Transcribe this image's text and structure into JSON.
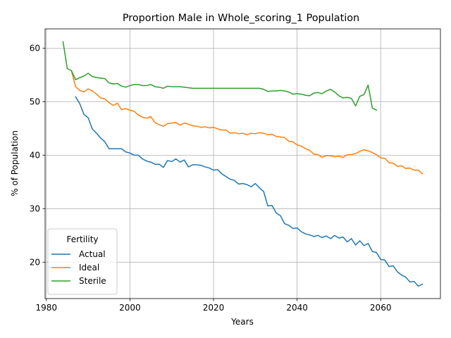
{
  "chart_data": {
    "type": "line",
    "title": "Proportion Male in Whole_scoring_1 Population",
    "xlabel": "Years",
    "ylabel": "% of Population",
    "xlim": [
      1979.7,
      2074.3
    ],
    "ylim": [
      13.2,
      63.6
    ],
    "xticks": [
      1980,
      2000,
      2020,
      2040,
      2060
    ],
    "yticks": [
      20,
      30,
      40,
      50,
      60
    ],
    "grid": true,
    "legend": {
      "title": "Fertility",
      "placement": "lower-left"
    },
    "series": [
      {
        "name": "Actual",
        "color": "#1f77b4",
        "points": [
          [
            1987,
            50.9
          ],
          [
            1988,
            49.6
          ],
          [
            1989,
            47.6
          ],
          [
            1990,
            47.0
          ],
          [
            1991,
            44.9
          ],
          [
            1992,
            44.1
          ],
          [
            1993,
            43.2
          ],
          [
            1994,
            42.5
          ],
          [
            1995,
            41.2
          ],
          [
            1996,
            41.2
          ],
          [
            1997,
            41.2
          ],
          [
            1998,
            41.2
          ],
          [
            1999,
            40.6
          ],
          [
            2000,
            40.4
          ],
          [
            2001,
            40.0
          ],
          [
            2002,
            40.0
          ],
          [
            2003,
            39.3
          ],
          [
            2004,
            38.9
          ],
          [
            2005,
            38.7
          ],
          [
            2006,
            38.3
          ],
          [
            2007,
            38.3
          ],
          [
            2008,
            37.7
          ],
          [
            2009,
            39.0
          ],
          [
            2010,
            38.8
          ],
          [
            2011,
            39.3
          ],
          [
            2012,
            38.7
          ],
          [
            2013,
            39.1
          ],
          [
            2014,
            37.8
          ],
          [
            2015,
            38.2
          ],
          [
            2016,
            38.2
          ],
          [
            2017,
            38.1
          ],
          [
            2018,
            37.8
          ],
          [
            2019,
            37.6
          ],
          [
            2020,
            37.2
          ],
          [
            2021,
            37.3
          ],
          [
            2022,
            36.5
          ],
          [
            2023,
            36.0
          ],
          [
            2024,
            35.5
          ],
          [
            2025,
            35.3
          ],
          [
            2026,
            34.6
          ],
          [
            2027,
            34.7
          ],
          [
            2028,
            34.5
          ],
          [
            2029,
            34.1
          ],
          [
            2030,
            34.7
          ],
          [
            2031,
            33.9
          ],
          [
            2032,
            33.2
          ],
          [
            2033,
            30.5
          ],
          [
            2034,
            30.6
          ],
          [
            2035,
            29.2
          ],
          [
            2036,
            28.7
          ],
          [
            2037,
            27.2
          ],
          [
            2038,
            26.9
          ],
          [
            2039,
            26.3
          ],
          [
            2040,
            26.4
          ],
          [
            2041,
            25.7
          ],
          [
            2042,
            25.3
          ],
          [
            2043,
            25.1
          ],
          [
            2044,
            24.8
          ],
          [
            2045,
            25.0
          ],
          [
            2046,
            24.6
          ],
          [
            2047,
            24.9
          ],
          [
            2048,
            24.4
          ],
          [
            2049,
            25.0
          ],
          [
            2050,
            24.5
          ],
          [
            2051,
            24.7
          ],
          [
            2052,
            23.8
          ],
          [
            2053,
            24.4
          ],
          [
            2054,
            23.2
          ],
          [
            2055,
            24.0
          ],
          [
            2056,
            23.1
          ],
          [
            2057,
            23.5
          ],
          [
            2058,
            22.0
          ],
          [
            2059,
            21.8
          ],
          [
            2060,
            20.5
          ],
          [
            2061,
            20.4
          ],
          [
            2062,
            19.2
          ],
          [
            2063,
            19.3
          ],
          [
            2064,
            18.2
          ],
          [
            2065,
            17.6
          ],
          [
            2066,
            17.2
          ],
          [
            2067,
            16.3
          ],
          [
            2068,
            16.4
          ],
          [
            2069,
            15.5
          ],
          [
            2070,
            15.9
          ]
        ]
      },
      {
        "name": "Ideal",
        "color": "#ff7f0e",
        "points": [
          [
            1986,
            55.8
          ],
          [
            1987,
            52.8
          ],
          [
            1988,
            52.1
          ],
          [
            1989,
            51.8
          ],
          [
            1990,
            52.4
          ],
          [
            1991,
            52.0
          ],
          [
            1992,
            51.4
          ],
          [
            1993,
            50.7
          ],
          [
            1994,
            50.5
          ],
          [
            1995,
            49.8
          ],
          [
            1996,
            49.3
          ],
          [
            1997,
            49.7
          ],
          [
            1998,
            48.5
          ],
          [
            1999,
            48.7
          ],
          [
            2000,
            48.4
          ],
          [
            2001,
            48.2
          ],
          [
            2002,
            47.5
          ],
          [
            2003,
            47.1
          ],
          [
            2004,
            46.9
          ],
          [
            2005,
            47.2
          ],
          [
            2006,
            46.1
          ],
          [
            2007,
            45.7
          ],
          [
            2008,
            45.4
          ],
          [
            2009,
            45.9
          ],
          [
            2010,
            46.0
          ],
          [
            2011,
            46.1
          ],
          [
            2012,
            45.6
          ],
          [
            2013,
            46.0
          ],
          [
            2014,
            45.8
          ],
          [
            2015,
            45.5
          ],
          [
            2016,
            45.4
          ],
          [
            2017,
            45.2
          ],
          [
            2018,
            45.3
          ],
          [
            2019,
            45.1
          ],
          [
            2020,
            45.2
          ],
          [
            2021,
            44.9
          ],
          [
            2022,
            44.7
          ],
          [
            2023,
            44.7
          ],
          [
            2024,
            44.1
          ],
          [
            2025,
            44.2
          ],
          [
            2026,
            44.0
          ],
          [
            2027,
            44.1
          ],
          [
            2028,
            43.8
          ],
          [
            2029,
            44.1
          ],
          [
            2030,
            44.0
          ],
          [
            2031,
            44.2
          ],
          [
            2032,
            44.1
          ],
          [
            2033,
            43.8
          ],
          [
            2034,
            43.9
          ],
          [
            2035,
            43.5
          ],
          [
            2036,
            43.4
          ],
          [
            2037,
            43.3
          ],
          [
            2038,
            42.6
          ],
          [
            2039,
            42.5
          ],
          [
            2040,
            41.9
          ],
          [
            2041,
            41.7
          ],
          [
            2042,
            41.2
          ],
          [
            2043,
            40.9
          ],
          [
            2044,
            40.2
          ],
          [
            2045,
            40.1
          ],
          [
            2046,
            39.6
          ],
          [
            2047,
            39.9
          ],
          [
            2048,
            39.9
          ],
          [
            2049,
            39.7
          ],
          [
            2050,
            39.8
          ],
          [
            2051,
            39.6
          ],
          [
            2052,
            40.1
          ],
          [
            2053,
            40.1
          ],
          [
            2054,
            40.3
          ],
          [
            2055,
            40.7
          ],
          [
            2056,
            41.0
          ],
          [
            2057,
            40.8
          ],
          [
            2058,
            40.5
          ],
          [
            2059,
            40.1
          ],
          [
            2060,
            39.5
          ],
          [
            2061,
            39.4
          ],
          [
            2062,
            38.6
          ],
          [
            2063,
            38.5
          ],
          [
            2064,
            37.9
          ],
          [
            2065,
            38.0
          ],
          [
            2066,
            37.5
          ],
          [
            2067,
            37.6
          ],
          [
            2068,
            37.2
          ],
          [
            2069,
            37.2
          ],
          [
            2070,
            36.5
          ]
        ]
      },
      {
        "name": "Sterile",
        "color": "#2ca02c",
        "points": [
          [
            1984,
            61.2
          ],
          [
            1985,
            56.2
          ],
          [
            1986,
            55.8
          ],
          [
            1987,
            54.1
          ],
          [
            1988,
            54.5
          ],
          [
            1989,
            54.8
          ],
          [
            1990,
            55.3
          ],
          [
            1991,
            54.7
          ],
          [
            1992,
            54.5
          ],
          [
            1993,
            54.4
          ],
          [
            1994,
            54.3
          ],
          [
            1995,
            53.5
          ],
          [
            1996,
            53.3
          ],
          [
            1997,
            53.4
          ],
          [
            1998,
            52.9
          ],
          [
            1999,
            52.7
          ],
          [
            2000,
            53.0
          ],
          [
            2001,
            53.2
          ],
          [
            2002,
            53.2
          ],
          [
            2003,
            53.0
          ],
          [
            2004,
            53.0
          ],
          [
            2005,
            53.2
          ],
          [
            2006,
            52.8
          ],
          [
            2007,
            52.7
          ],
          [
            2008,
            52.5
          ],
          [
            2009,
            52.9
          ],
          [
            2010,
            52.8
          ],
          [
            2011,
            52.8
          ],
          [
            2012,
            52.8
          ],
          [
            2013,
            52.7
          ],
          [
            2014,
            52.6
          ],
          [
            2015,
            52.5
          ],
          [
            2016,
            52.5
          ],
          [
            2017,
            52.5
          ],
          [
            2018,
            52.5
          ],
          [
            2019,
            52.5
          ],
          [
            2020,
            52.5
          ],
          [
            2021,
            52.5
          ],
          [
            2022,
            52.5
          ],
          [
            2023,
            52.5
          ],
          [
            2024,
            52.5
          ],
          [
            2025,
            52.5
          ],
          [
            2026,
            52.5
          ],
          [
            2027,
            52.5
          ],
          [
            2028,
            52.5
          ],
          [
            2029,
            52.5
          ],
          [
            2030,
            52.5
          ],
          [
            2031,
            52.5
          ],
          [
            2032,
            52.3
          ],
          [
            2033,
            51.9
          ],
          [
            2034,
            52.0
          ],
          [
            2035,
            52.0
          ],
          [
            2036,
            52.1
          ],
          [
            2037,
            52.0
          ],
          [
            2038,
            51.8
          ],
          [
            2039,
            51.4
          ],
          [
            2040,
            51.5
          ],
          [
            2041,
            51.4
          ],
          [
            2042,
            51.2
          ],
          [
            2043,
            51.1
          ],
          [
            2044,
            51.6
          ],
          [
            2045,
            51.7
          ],
          [
            2046,
            51.5
          ],
          [
            2047,
            52.0
          ],
          [
            2048,
            52.3
          ],
          [
            2049,
            51.8
          ],
          [
            2050,
            51.1
          ],
          [
            2051,
            50.7
          ],
          [
            2052,
            50.8
          ],
          [
            2053,
            50.6
          ],
          [
            2054,
            49.2
          ],
          [
            2055,
            51.0
          ],
          [
            2056,
            51.3
          ],
          [
            2057,
            53.1
          ],
          [
            2058,
            48.8
          ],
          [
            2059,
            48.4
          ]
        ]
      }
    ]
  }
}
